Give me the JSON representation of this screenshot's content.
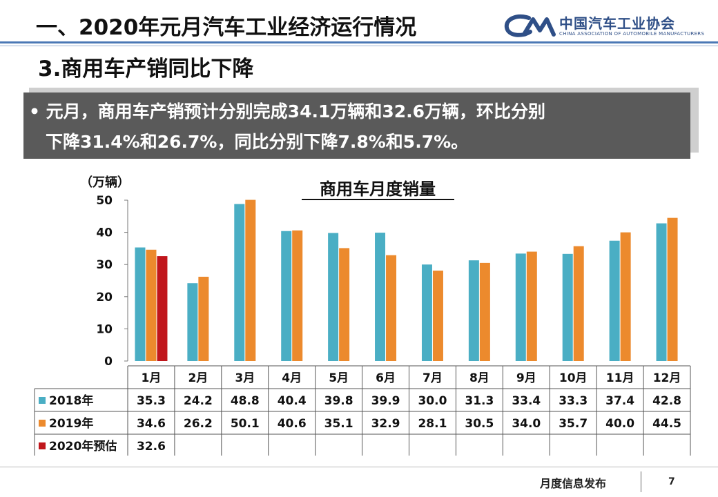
{
  "slide": {
    "title": "一、2020年元月汽车工业经济运行情况",
    "subtitle": "3.商用车产销同比下降",
    "summary_line1": "• 元月，商用车产销预计分别完成34.1万辆和32.6万辆，环比分别",
    "summary_line2": "下降31.4%和26.7%，同比分别下降7.8%和5.7%。",
    "logo_cn": "中国汽车工业协会",
    "logo_en": "CHINA ASSOCIATION OF AUTOMOBILE MANUFACTURERS",
    "footer": "月度信息发布",
    "page_number": "7"
  },
  "chart_data": {
    "type": "bar",
    "title": "商用车月度销量",
    "ylabel": "（万辆）",
    "ylim": [
      0,
      50
    ],
    "yticks": [
      0,
      10,
      20,
      30,
      40,
      50
    ],
    "categories": [
      "1月",
      "2月",
      "3月",
      "4月",
      "5月",
      "6月",
      "7月",
      "8月",
      "9月",
      "10月",
      "11月",
      "12月"
    ],
    "series": [
      {
        "name": "2018年",
        "color": "#4aaec4",
        "values": [
          35.3,
          24.2,
          48.8,
          40.4,
          39.8,
          39.9,
          30.0,
          31.3,
          33.4,
          33.3,
          37.4,
          42.8
        ]
      },
      {
        "name": "2019年",
        "color": "#ec8a2d",
        "values": [
          34.6,
          26.2,
          50.1,
          40.6,
          35.1,
          32.9,
          28.1,
          30.5,
          34.0,
          35.7,
          40.0,
          44.5
        ]
      },
      {
        "name": "2020年预估",
        "color": "#c0161c",
        "values": [
          32.6,
          null,
          null,
          null,
          null,
          null,
          null,
          null,
          null,
          null,
          null,
          null
        ]
      }
    ],
    "grid": false,
    "legend": "data-table"
  }
}
